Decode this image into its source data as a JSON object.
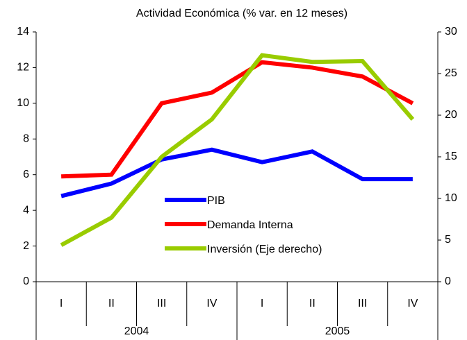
{
  "chart_data": {
    "type": "line",
    "title": "Actividad Económica (% var. en 12 meses)",
    "categories": [
      "I",
      "II",
      "III",
      "IV",
      "I",
      "II",
      "III",
      "IV"
    ],
    "groups": [
      "2004",
      "2005"
    ],
    "series": [
      {
        "name": "PIB",
        "color": "#0000ff",
        "values": [
          4.8,
          5.5,
          6.85,
          7.4,
          6.7,
          7.3,
          5.75,
          5.75
        ]
      },
      {
        "name": "Demanda Interna",
        "color": "#ff0000",
        "values": [
          5.9,
          6.0,
          10.0,
          10.6,
          12.3,
          12.0,
          11.5,
          10.0
        ]
      },
      {
        "name": "Inversión (Eje derecho)",
        "color": "#99cc00",
        "axis": "y2",
        "values": [
          4.4,
          7.7,
          15.0,
          19.5,
          27.2,
          26.4,
          26.5,
          19.5
        ]
      }
    ],
    "ylim": [
      0,
      14
    ],
    "yticks": [
      0,
      2,
      4,
      6,
      8,
      10,
      12,
      14
    ],
    "y2lim": [
      0,
      30
    ],
    "y2ticks": [
      0,
      5,
      10,
      15,
      20,
      25,
      30
    ]
  }
}
